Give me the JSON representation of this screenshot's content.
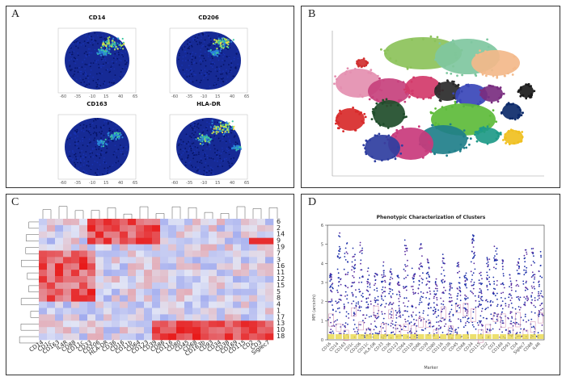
{
  "panels": {
    "a": {
      "label": "A",
      "plots": [
        {
          "title": "CD14"
        },
        {
          "title": "CD206"
        },
        {
          "title": "CD163"
        },
        {
          "title": "HLA-DR"
        }
      ]
    },
    "b": {
      "label": "B"
    },
    "c": {
      "label": "C",
      "rows": [
        "6",
        "2",
        "14",
        "9",
        "19",
        "7",
        "3",
        "16",
        "11",
        "12",
        "15",
        "5",
        "8",
        "4",
        "1",
        "17",
        "13",
        "10",
        "18"
      ],
      "cols": [
        "CD14",
        "CD1c",
        "CD163",
        "IL4R",
        "CD88",
        "CD11c",
        "CD33",
        "CD206",
        "HLA-DR",
        "CD36",
        "CD16",
        "CD11b",
        "CD64",
        "CD123",
        "CD39",
        "CD86",
        "CD116",
        "CD80",
        "CD45",
        "CD68",
        "CD163b",
        "CD93",
        "CD34",
        "CD38",
        "CD169",
        "CD115",
        "CD2",
        "CD3",
        "Siglec7"
      ]
    },
    "d": {
      "label": "D",
      "title": "Phenotypic Characterization of Clusters",
      "ylabel": "MFI (arcsinh)",
      "xlabel": "Marker",
      "yticks": [
        "0",
        "1",
        "2",
        "3",
        "4",
        "5",
        "6"
      ],
      "markers": [
        "CD16",
        "CD14",
        "CD163",
        "CD1c",
        "CD206",
        "CD11c",
        "HLA-DR",
        "CD33",
        "CD36",
        "CD123",
        "CD64",
        "CD11b",
        "CD86",
        "CD39",
        "CD80",
        "CD116",
        "CD38",
        "CD45",
        "CD68",
        "CD34",
        "CD115",
        "CD2",
        "CD3",
        "CD169",
        "CD93",
        "CD4",
        "Siglec7",
        "CD88",
        "IL4R"
      ]
    }
  },
  "colors": {
    "tsne_base": "#0a1f8f",
    "heat_high": "#e8151b",
    "heat_low": "#2236d4"
  }
}
